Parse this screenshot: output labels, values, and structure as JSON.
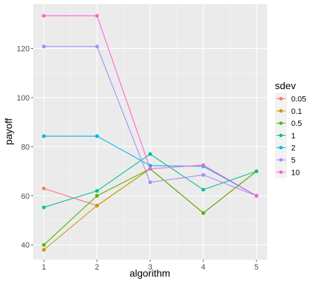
{
  "chart_data": {
    "type": "line",
    "xlabel": "algorithm",
    "ylabel": "payoff",
    "x": [
      1,
      2,
      3,
      4,
      5
    ],
    "xlim": [
      0.8,
      5.2
    ],
    "ylim": [
      34,
      138
    ],
    "x_ticks": [
      "1",
      "2",
      "3",
      "4",
      "5"
    ],
    "y_ticks": [
      40,
      60,
      80,
      100,
      120
    ],
    "grid": true,
    "legend": {
      "title": "sdev",
      "position": "right"
    },
    "series": [
      {
        "name": "0.05",
        "color": "#F8766D",
        "values": [
          63,
          56,
          71,
          53,
          70
        ]
      },
      {
        "name": "0.1",
        "color": "#C49A00",
        "values": [
          38,
          56,
          71,
          53,
          70
        ]
      },
      {
        "name": "0.5",
        "color": "#53B400",
        "values": [
          40,
          60,
          71,
          53,
          70
        ]
      },
      {
        "name": "1",
        "color": "#00C094",
        "values": [
          55.3,
          62,
          77,
          62.5,
          70
        ]
      },
      {
        "name": "2",
        "color": "#00B6EB",
        "values": [
          84.3,
          84.3,
          72.3,
          72,
          60
        ]
      },
      {
        "name": "5",
        "color": "#A58AFF",
        "values": [
          120.8,
          120.8,
          65.5,
          68.5,
          60
        ]
      },
      {
        "name": "10",
        "color": "#FB61D7",
        "values": [
          133.3,
          133.3,
          71,
          72.5,
          60
        ]
      }
    ]
  }
}
